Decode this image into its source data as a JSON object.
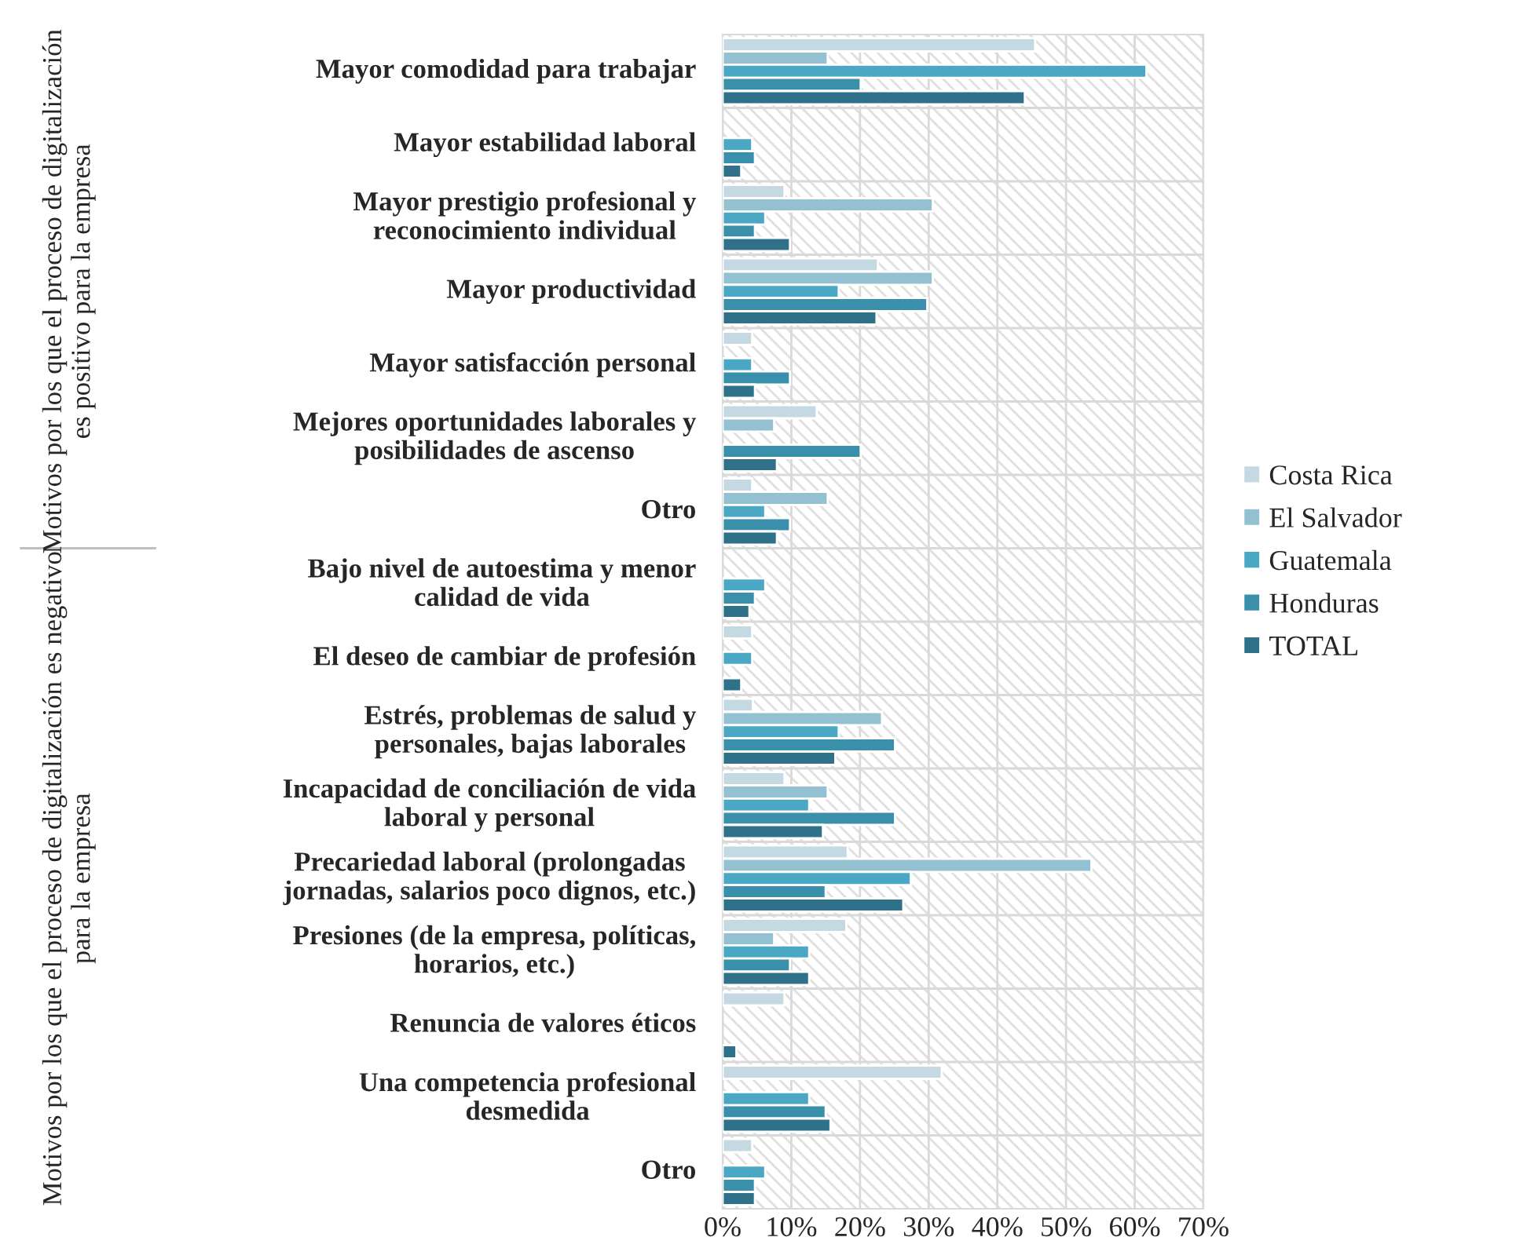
{
  "chart_data": {
    "type": "bar",
    "orientation": "horizontal",
    "categories": [
      "Mayor comodidad para trabajar",
      "Mayor estabilidad laboral",
      "Mayor prestigio profesional y\nreconocimiento individual",
      "Mayor productividad",
      "Mayor satisfacción personal",
      "Mejores oportunidades laborales y\nposibilidades de ascenso",
      "Otro",
      "Bajo nivel de autoestima y menor\ncalidad de vida",
      "El deseo de cambiar de profesión",
      "Estrés, problemas de salud y\npersonales, bajas laborales",
      "Incapacidad de conciliación de vida\nlaboral y personal",
      "Precariedad laboral (prolongadas\njornadas, salarios poco dignos, etc.)",
      "Presiones (de la empresa, políticas,\nhorarios, etc.)",
      "Renuncia de valores éticos",
      "Una competencia profesional\ndesmedida",
      "Otro"
    ],
    "series": [
      {
        "name": "Costa Rica",
        "color": "#c5d9e2",
        "values": [
          45.5,
          0,
          9.0,
          22.6,
          4.3,
          13.7,
          4.3,
          0,
          4.3,
          4.4,
          9.0,
          18.2,
          18.0,
          9.0,
          31.9,
          4.3
        ]
      },
      {
        "name": "El Salvador",
        "color": "#93c1d1",
        "values": [
          15.3,
          0,
          30.6,
          30.6,
          0,
          7.5,
          15.3,
          0,
          0,
          23.2,
          15.3,
          53.7,
          7.5,
          0,
          0,
          0
        ]
      },
      {
        "name": "Guatemala",
        "color": "#4aa8c4",
        "values": [
          61.7,
          4.3,
          6.2,
          16.9,
          4.3,
          0,
          6.2,
          6.2,
          4.3,
          16.9,
          12.6,
          27.4,
          12.6,
          0,
          12.6,
          6.2
        ]
      },
      {
        "name": "Honduras",
        "color": "#3a8fab",
        "values": [
          20.1,
          4.7,
          4.7,
          29.8,
          9.8,
          20.1,
          9.8,
          4.7,
          0,
          25.1,
          25.1,
          15.0,
          9.8,
          0,
          15.0,
          4.7
        ]
      },
      {
        "name": "TOTAL",
        "color": "#2e7188",
        "values": [
          44.0,
          2.7,
          9.8,
          22.4,
          4.7,
          7.9,
          7.9,
          3.9,
          2.7,
          16.4,
          14.6,
          26.3,
          12.6,
          2.0,
          15.7,
          4.7
        ]
      }
    ],
    "xlim": [
      0,
      70
    ],
    "xticks": [
      {
        "value": 0,
        "label": "0%"
      },
      {
        "value": 10,
        "label": "10%"
      },
      {
        "value": 20,
        "label": "20%"
      },
      {
        "value": 30,
        "label": "30%"
      },
      {
        "value": 40,
        "label": "40%"
      },
      {
        "value": 50,
        "label": "50%"
      },
      {
        "value": 60,
        "label": "60%"
      },
      {
        "value": 70,
        "label": "70%"
      }
    ],
    "annotations": [
      "Motivos por los que el proceso de digitalización\nes positivo para la empresa",
      "Motivos por los que el proceso de digitalización es negativo\npara la empresa"
    ],
    "grid": true,
    "legend": "right"
  }
}
